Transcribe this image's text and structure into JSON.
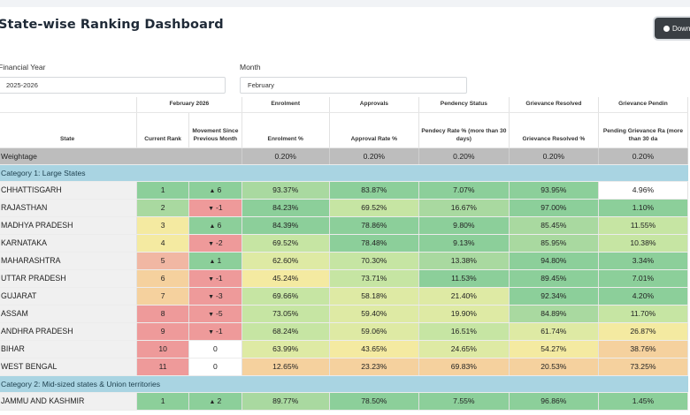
{
  "page": {
    "title": "State-wise Ranking Dashboard",
    "download_label": "Down",
    "filters": {
      "year_label": "Financial Year",
      "year_value": "2025-2026",
      "month_label": "Month",
      "month_value": "February"
    }
  },
  "table": {
    "group_headers": [
      "February 2026",
      "Enrolment",
      "Approvals",
      "Pendency Status",
      "Grievance Resolved",
      "Grievance Pendin"
    ],
    "col_headers": [
      "State",
      "Current Rank",
      "Movement Since Previous Month",
      "Enrolment %",
      "Approval Rate %",
      "Pendecy Rate % (more than 30 days)",
      "Grievance Resolved %",
      "Pending Grievance Ra (more than 30 da"
    ],
    "weightage": {
      "label": "Weightage",
      "values": [
        "0.20%",
        "0.20%",
        "0.20%",
        "0.20%",
        "0.20%"
      ]
    },
    "categories": [
      {
        "label": "Category 1: Large States",
        "rows": [
          {
            "state": "CHHATTISGARH",
            "rank": "1",
            "movement": "6",
            "dir": "up",
            "values": [
              "93.37%",
              "83.87%",
              "7.07%",
              "93.95%",
              "4.96%"
            ]
          },
          {
            "state": "RAJASTHAN",
            "rank": "2",
            "movement": "-1",
            "dir": "down",
            "values": [
              "84.23%",
              "69.52%",
              "16.67%",
              "97.00%",
              "1.10%"
            ]
          },
          {
            "state": "MADHYA PRADESH",
            "rank": "3",
            "movement": "6",
            "dir": "up",
            "values": [
              "84.39%",
              "78.86%",
              "9.80%",
              "85.45%",
              "11.55%"
            ]
          },
          {
            "state": "KARNATAKA",
            "rank": "4",
            "movement": "-2",
            "dir": "down",
            "values": [
              "69.52%",
              "78.48%",
              "9.13%",
              "85.95%",
              "10.38%"
            ]
          },
          {
            "state": "MAHARASHTRA",
            "rank": "5",
            "movement": "1",
            "dir": "up",
            "values": [
              "62.60%",
              "70.30%",
              "13.38%",
              "94.80%",
              "3.34%"
            ]
          },
          {
            "state": "UTTAR PRADESH",
            "rank": "6",
            "movement": "-1",
            "dir": "down",
            "values": [
              "45.24%",
              "73.71%",
              "11.53%",
              "89.45%",
              "7.01%"
            ]
          },
          {
            "state": "GUJARAT",
            "rank": "7",
            "movement": "-3",
            "dir": "down",
            "values": [
              "69.66%",
              "58.18%",
              "21.40%",
              "92.34%",
              "4.20%"
            ]
          },
          {
            "state": "ASSAM",
            "rank": "8",
            "movement": "-5",
            "dir": "down",
            "values": [
              "73.05%",
              "59.40%",
              "19.90%",
              "84.89%",
              "11.70%"
            ]
          },
          {
            "state": "ANDHRA PRADESH",
            "rank": "9",
            "movement": "-1",
            "dir": "down",
            "values": [
              "68.24%",
              "59.06%",
              "16.51%",
              "61.74%",
              "26.87%"
            ]
          },
          {
            "state": "BIHAR",
            "rank": "10",
            "movement": "0",
            "dir": "none",
            "values": [
              "63.99%",
              "43.65%",
              "24.65%",
              "54.27%",
              "38.76%"
            ]
          },
          {
            "state": "WEST BENGAL",
            "rank": "11",
            "movement": "0",
            "dir": "none",
            "values": [
              "12.65%",
              "23.23%",
              "69.83%",
              "20.53%",
              "73.25%"
            ]
          }
        ]
      },
      {
        "label": "Category 2: Mid-sized states & Union territories",
        "rows": [
          {
            "state": "JAMMU AND KASHMIR",
            "rank": "1",
            "movement": "2",
            "dir": "up",
            "values": [
              "89.77%",
              "78.50%",
              "7.55%",
              "96.86%",
              "1.45%"
            ]
          }
        ]
      }
    ]
  },
  "colors": {
    "dark_green": "#8ccf9a",
    "green": "#a9d9a0",
    "light_green": "#c6e5a3",
    "yellow_green": "#deeaa4",
    "yellow": "#f4eaa1",
    "orange": "#f5d19e",
    "salmon": "#f1b7a3",
    "red": "#ee9a9a",
    "white": "#ffffff"
  },
  "cell_colors": [
    [
      "dark_green",
      "dark_green",
      "green",
      "dark_green",
      "dark_green",
      "dark_green"
    ],
    [
      "green",
      "red",
      "dark_green",
      "light_green",
      "green",
      "dark_green",
      "dark_green"
    ],
    [
      "yellow",
      "dark_green",
      "dark_green",
      "dark_green",
      "dark_green",
      "green",
      "light_green"
    ],
    [
      "yellow",
      "red",
      "light_green",
      "dark_green",
      "dark_green",
      "green",
      "light_green"
    ],
    [
      "salmon",
      "dark_green",
      "yellow_green",
      "light_green",
      "green",
      "dark_green",
      "dark_green"
    ],
    [
      "orange",
      "red",
      "yellow",
      "light_green",
      "dark_green",
      "dark_green",
      "dark_green"
    ],
    [
      "orange",
      "red",
      "light_green",
      "yellow_green",
      "yellow_green",
      "dark_green",
      "dark_green"
    ],
    [
      "red",
      "red",
      "light_green",
      "yellow_green",
      "yellow_green",
      "green",
      "light_green"
    ],
    [
      "red",
      "red",
      "light_green",
      "yellow_green",
      "light_green",
      "yellow_green",
      "yellow"
    ],
    [
      "red",
      "white",
      "yellow_green",
      "yellow",
      "yellow_green",
      "yellow",
      "orange"
    ],
    [
      "red",
      "white",
      "orange",
      "orange",
      "orange",
      "orange",
      "orange"
    ],
    [
      "dark_green",
      "dark_green",
      "green",
      "dark_green",
      "dark_green",
      "dark_green",
      "dark_green"
    ]
  ]
}
